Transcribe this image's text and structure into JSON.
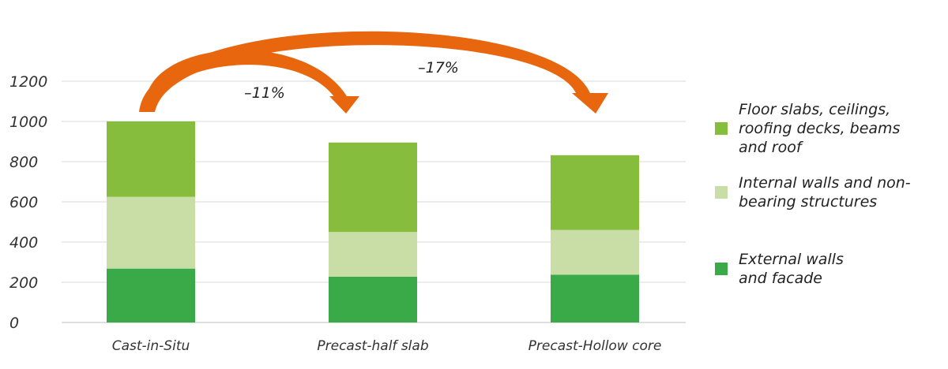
{
  "chart_data": {
    "type": "bar",
    "stacked": true,
    "categories": [
      "Cast-in-Situ",
      "Precast-half slab",
      "Precast-Hollow core"
    ],
    "series": [
      {
        "name": "External walls and facade",
        "color": "#3aaa48",
        "values": [
          268,
          228,
          238
        ]
      },
      {
        "name": "Internal walls and non-bearing structures",
        "color": "#c9dea6",
        "values": [
          357,
          222,
          222
        ]
      },
      {
        "name": "Floor slabs, ceilings, roofing decks, beams and roof",
        "color": "#86bd3c",
        "values": [
          375,
          445,
          372
        ]
      }
    ],
    "yticks": [
      0,
      200,
      400,
      600,
      800,
      1000,
      1200
    ],
    "ylim": [
      0,
      1200
    ],
    "grid": true,
    "legend_position": "right",
    "annotations": [
      {
        "label": "–11%",
        "from": "Cast-in-Situ",
        "to": "Precast-half slab"
      },
      {
        "label": "–17%",
        "from": "Cast-in-Situ",
        "to": "Precast-Hollow core"
      }
    ],
    "annotation_color": "#e8660e"
  },
  "legend": [
    {
      "label": "Floor slabs, ceilings,\nroofing decks, beams\nand roof",
      "color": "#86bd3c"
    },
    {
      "label": "Internal walls and non-\nbearing structures",
      "color": "#c9dea6"
    },
    {
      "label": "External walls\nand facade",
      "color": "#3aaa48"
    }
  ]
}
